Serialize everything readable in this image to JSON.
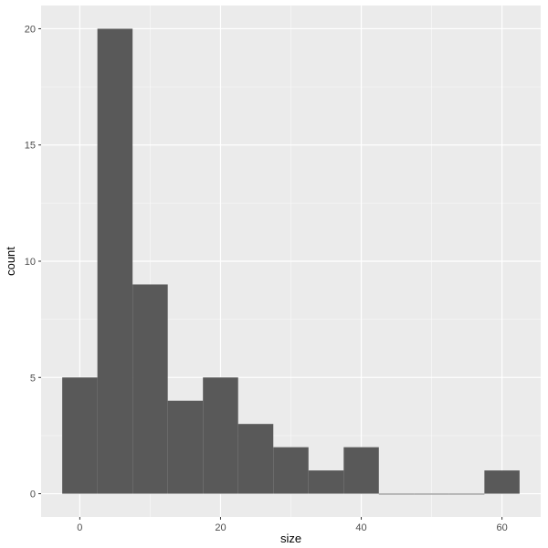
{
  "chart_data": {
    "type": "bar",
    "subtype": "histogram",
    "xlabel": "size",
    "ylabel": "count",
    "xlim": [
      -5.5,
      65.5
    ],
    "ylim": [
      -1,
      21
    ],
    "x_ticks": [
      0,
      20,
      40,
      60
    ],
    "y_ticks": [
      0,
      5,
      10,
      15,
      20
    ],
    "grid": true,
    "bin_width": 5,
    "bins": [
      {
        "x_min": -2.5,
        "x_max": 2.5,
        "count": 5
      },
      {
        "x_min": 2.5,
        "x_max": 7.5,
        "count": 20
      },
      {
        "x_min": 7.5,
        "x_max": 12.5,
        "count": 9
      },
      {
        "x_min": 12.5,
        "x_max": 17.5,
        "count": 4
      },
      {
        "x_min": 17.5,
        "x_max": 22.5,
        "count": 5
      },
      {
        "x_min": 22.5,
        "x_max": 27.5,
        "count": 3
      },
      {
        "x_min": 27.5,
        "x_max": 32.5,
        "count": 2
      },
      {
        "x_min": 32.5,
        "x_max": 37.5,
        "count": 1
      },
      {
        "x_min": 37.5,
        "x_max": 42.5,
        "count": 2
      },
      {
        "x_min": 42.5,
        "x_max": 47.5,
        "count": 0
      },
      {
        "x_min": 47.5,
        "x_max": 52.5,
        "count": 0
      },
      {
        "x_min": 52.5,
        "x_max": 57.5,
        "count": 0
      },
      {
        "x_min": 57.5,
        "x_max": 62.5,
        "count": 1
      }
    ],
    "colors": {
      "panel_background": "#ebebeb",
      "grid_major": "#ffffff",
      "bar_fill": "#595959",
      "tick_text": "#4d4d4d",
      "axis_title": "#000000"
    }
  }
}
